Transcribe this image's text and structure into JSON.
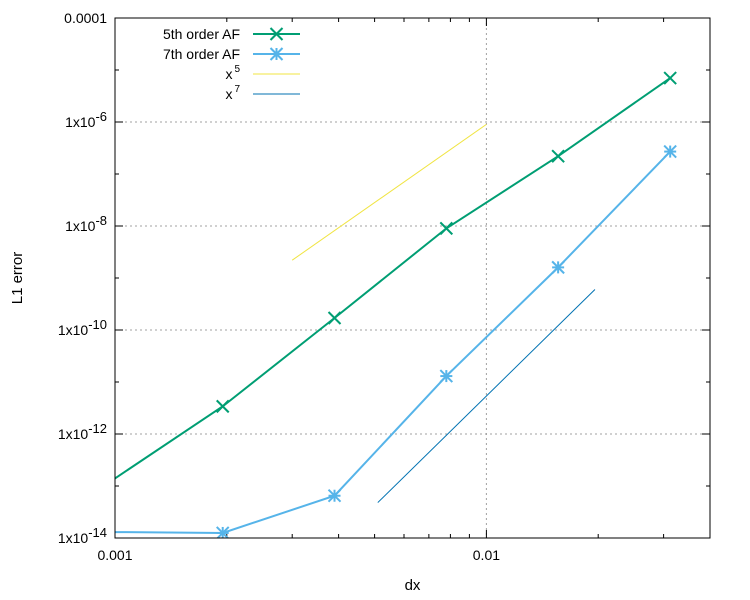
{
  "chart_data": {
    "type": "line",
    "title": "",
    "xlabel": "dx",
    "ylabel": "L1 error",
    "xscale": "log",
    "yscale": "log",
    "xlim": [
      0.001,
      0.04
    ],
    "ylim": [
      1e-14,
      0.0001
    ],
    "x_ticks": [
      {
        "value": 0.001,
        "label": "0.001"
      },
      {
        "value": 0.01,
        "label": "0.01"
      }
    ],
    "y_ticks": [
      {
        "value": 1e-14,
        "label": "1x10",
        "exp": "-14"
      },
      {
        "value": 1e-12,
        "label": "1x10",
        "exp": "-12"
      },
      {
        "value": 1e-10,
        "label": "1x10",
        "exp": "-10"
      },
      {
        "value": 1e-08,
        "label": "1x10",
        "exp": "-8"
      },
      {
        "value": 1e-06,
        "label": "1x10",
        "exp": "-6"
      },
      {
        "value": 0.0001,
        "label": "0.0001",
        "exp": ""
      }
    ],
    "grid": true,
    "legend_position": "top-left",
    "series": [
      {
        "name": "5th order AF",
        "color": "#009e73",
        "marker": "x",
        "x": [
          0.001,
          0.00195,
          0.0039,
          0.0078,
          0.0156,
          0.03125
        ],
        "y": [
          1.4e-13,
          3.4e-12,
          1.7e-10,
          9e-09,
          2.2e-07,
          7e-06
        ]
      },
      {
        "name": "7th order AF",
        "color": "#56b4e9",
        "marker": "star",
        "x": [
          0.001,
          0.00195,
          0.0039,
          0.0078,
          0.0156,
          0.03125
        ],
        "y": [
          1.3e-14,
          1.25e-14,
          6.5e-14,
          1.3e-11,
          1.6e-09,
          2.7e-07
        ]
      },
      {
        "name": "x",
        "name_sup": "5",
        "color": "#f0e442",
        "marker": "none",
        "x": [
          0.003,
          0.01
        ],
        "y": [
          2.2e-09,
          9e-07
        ]
      },
      {
        "name": "x",
        "name_sup": "7",
        "color": "#0072b2",
        "marker": "none",
        "x": [
          0.0051,
          0.0196
        ],
        "y": [
          4.8e-14,
          6e-10
        ]
      }
    ]
  }
}
